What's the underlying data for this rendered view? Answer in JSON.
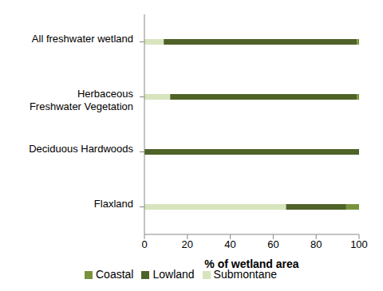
{
  "chart_data": {
    "type": "bar",
    "orientation": "horizontal",
    "stacked": true,
    "categories": [
      "All freshwater wetland",
      "Herbaceous Freshwater Vegetation",
      "Deciduous Hardwoods",
      "Flaxland"
    ],
    "series": [
      {
        "name": "Submontane",
        "color": "#d7e4bd",
        "values": [
          9,
          12,
          0,
          66
        ]
      },
      {
        "name": "Lowland",
        "color": "#4f6228",
        "values": [
          90,
          87,
          100,
          28
        ]
      },
      {
        "name": "Coastal",
        "color": "#77933c",
        "values": [
          1,
          1,
          0,
          6
        ]
      }
    ],
    "x_label": "% of wetland area",
    "xlim": [
      0,
      100
    ],
    "xticks": [
      0,
      20,
      40,
      60,
      80,
      100
    ],
    "grid": false,
    "legend": "bottom"
  }
}
